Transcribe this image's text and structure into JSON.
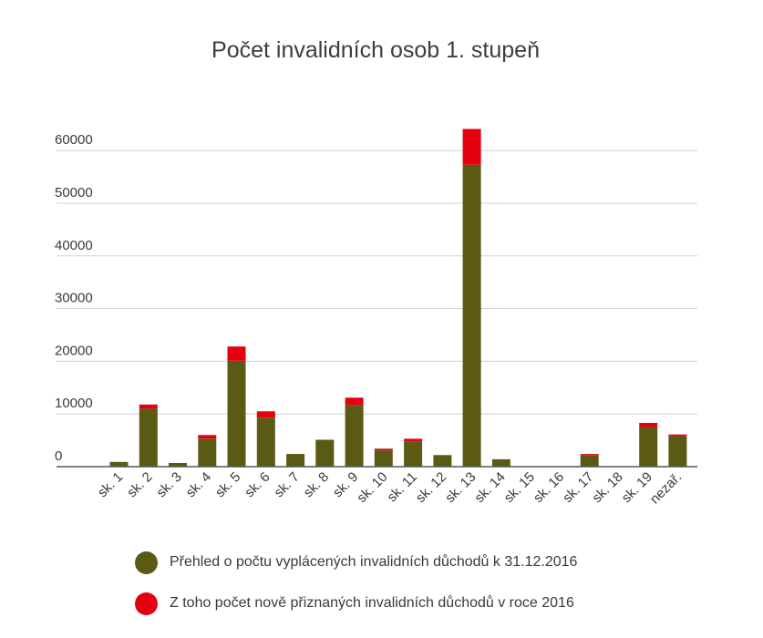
{
  "chart_data": {
    "type": "bar",
    "stacked": true,
    "title": "Počet invalidních osob 1. stupeň",
    "xlabel": "",
    "ylabel": "",
    "ylim": [
      0,
      65000
    ],
    "yticks": [
      0,
      10000,
      20000,
      30000,
      40000,
      50000,
      60000
    ],
    "grid": true,
    "legend_position": "bottom",
    "categories": [
      "sk. 1",
      "sk. 2",
      "sk. 3",
      "sk. 4",
      "sk. 5",
      "sk. 6",
      "sk. 7",
      "sk. 8",
      "sk. 9",
      "sk. 10",
      "sk. 11",
      "sk. 12",
      "sk. 13",
      "sk. 14",
      "sk. 15",
      "sk. 16",
      "sk. 17",
      "sk. 18",
      "sk. 19",
      "nezař."
    ],
    "series": [
      {
        "name": "Přehled o počtu vyplácených invalidních důchodů k 31.12.2016",
        "color": "#5b5a14",
        "values": [
          900,
          11000,
          700,
          5300,
          20100,
          9300,
          2400,
          5100,
          11700,
          3100,
          4800,
          2200,
          57300,
          1400,
          0,
          0,
          2100,
          0,
          7500,
          5800
        ]
      },
      {
        "name": "Z toho počet nově přiznaných invalidních důchodů v roce 2016",
        "color": "#e3000f",
        "values": [
          0,
          800,
          0,
          700,
          2700,
          1200,
          0,
          0,
          1400,
          300,
          500,
          0,
          6800,
          0,
          0,
          0,
          300,
          0,
          800,
          300
        ]
      }
    ]
  }
}
